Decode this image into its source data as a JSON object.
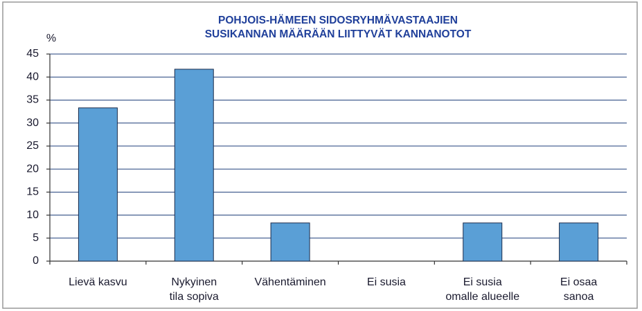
{
  "chart_data": {
    "type": "bar",
    "title": [
      "POHJOIS-HÄMEEN SIDOSRYHMÄVASTAAJIEN",
      "SUSIKANNAN MÄÄRÄÄN LIITTYVÄT KANNANOTOT"
    ],
    "y_label": "%",
    "categories": [
      [
        "Lievä kasvu"
      ],
      [
        "Nykyinen",
        "tila sopiva"
      ],
      [
        "Vähentäminen"
      ],
      [
        "Ei susia"
      ],
      [
        "Ei susia",
        "omalle alueelle"
      ],
      [
        "Ei osaa",
        "sanoa"
      ]
    ],
    "values": [
      33.3,
      41.7,
      8.3,
      0,
      8.3,
      8.3
    ],
    "color": "#5a9fd6",
    "ylim": [
      0,
      45
    ],
    "yticks": [
      0,
      5,
      10,
      15,
      20,
      25,
      30,
      35,
      40,
      45
    ],
    "grid": true
  }
}
